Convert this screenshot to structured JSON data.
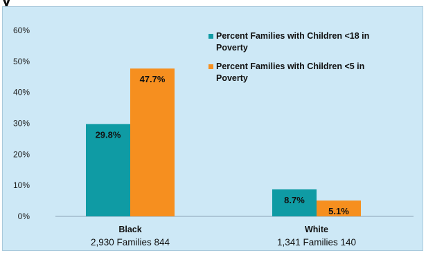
{
  "header": {
    "partial_title": "y"
  },
  "colors": {
    "series1": "#0f9ba4",
    "series2": "#f68f1f",
    "frame": "#cde8f6"
  },
  "chart_data": {
    "type": "bar",
    "categories": [
      "Black",
      "White"
    ],
    "category_sublabels": [
      "2,930 Families 844",
      "1,341 Families 140"
    ],
    "series": [
      {
        "name": "Percent Families with Children <18 in Poverty",
        "legend_lines": [
          "Percent Families with Children <18 in",
          "Poverty"
        ],
        "values": [
          29.8,
          8.7
        ],
        "labels": [
          "29.8%",
          "8.7%"
        ]
      },
      {
        "name": "Percent Families with Children <5 in Poverty",
        "legend_lines": [
          "Percent Families with Children <5 in",
          "Poverty"
        ],
        "values": [
          47.7,
          5.1
        ],
        "labels": [
          "47.7%",
          "5.1%"
        ]
      }
    ],
    "title": "",
    "xlabel": "",
    "ylabel": "",
    "ylim": [
      0,
      60
    ],
    "yticks": [
      "0%",
      "10%",
      "20%",
      "30%",
      "40%",
      "50%",
      "60%"
    ],
    "grid": false,
    "legend": "top-right"
  }
}
